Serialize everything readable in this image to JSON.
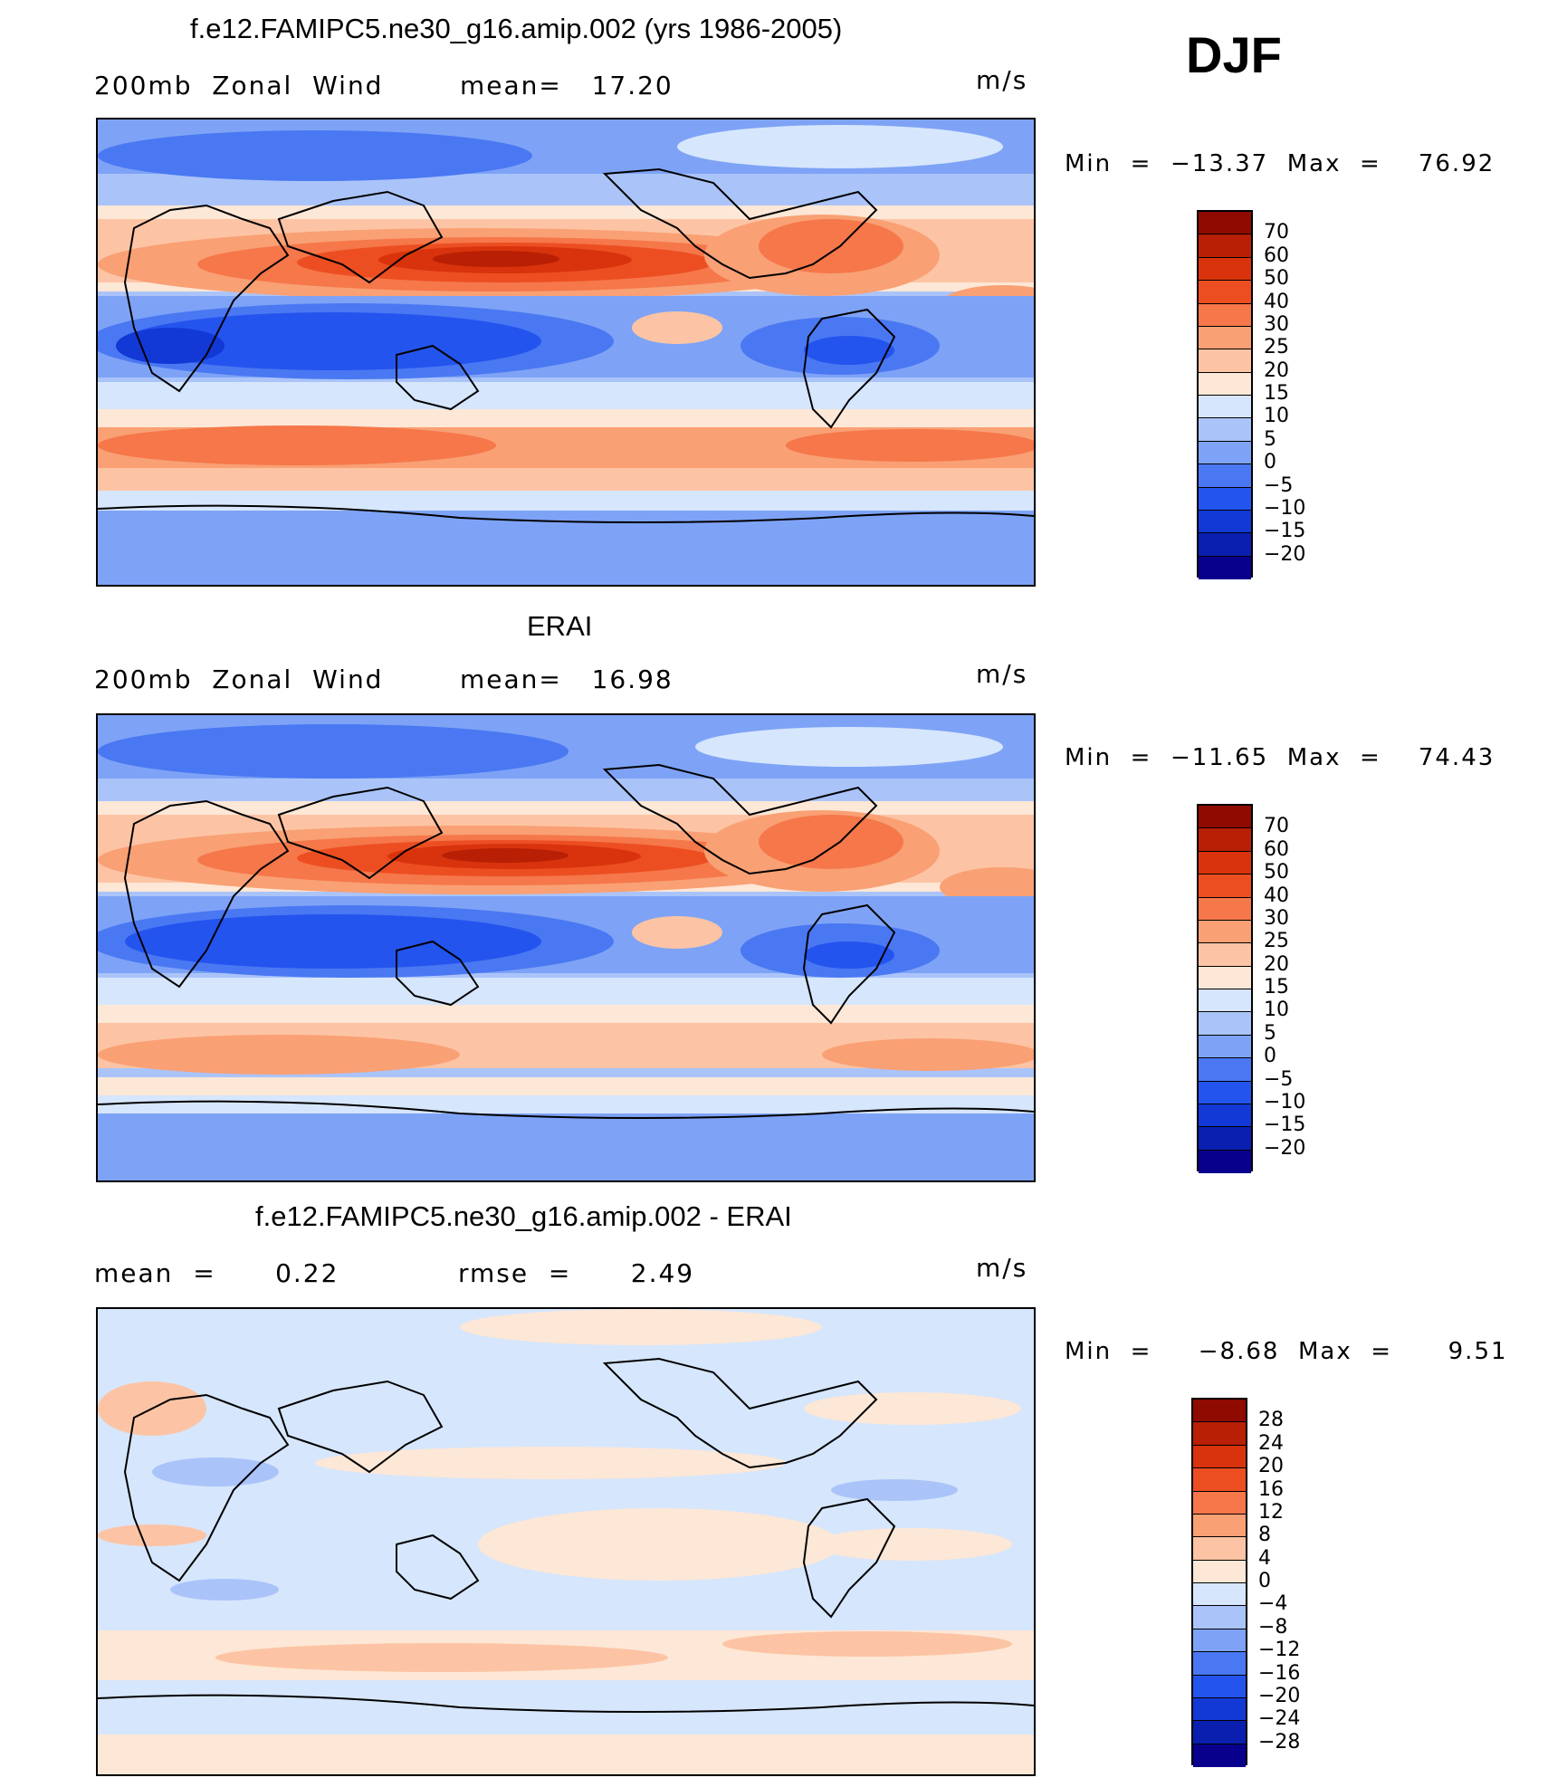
{
  "season": "DJF",
  "palette_wind": [
    "#08008c",
    "#0a1fb0",
    "#1238d6",
    "#2454ee",
    "#4a78f2",
    "#7ea3f6",
    "#aac4fa",
    "#d6e6fc",
    "#fde7d6",
    "#fcc4a4",
    "#f9a074",
    "#f5774a",
    "#ec4e22",
    "#d8330c",
    "#b81f04",
    "#8f0a00"
  ],
  "palette_diff": [
    "#08008c",
    "#0a1fb0",
    "#1238d6",
    "#2454ee",
    "#4a78f2",
    "#7ea3f6",
    "#aac4fa",
    "#d6e6fc",
    "#fde7d6",
    "#fcc4a4",
    "#f9a074",
    "#f5774a",
    "#ec4e22",
    "#d8330c",
    "#b81f04",
    "#8f0a00"
  ],
  "panels": [
    {
      "title": "f.e12.FAMIPC5.ne30_g16.amip.002 (yrs 1986-2005)",
      "left_label": "200mb  Zonal  Wind",
      "middle_label": "mean=   17.20",
      "units": "m/s",
      "min_label": "Min  =  −13.37  Max  =    76.92",
      "colorbar_labels": [
        "70",
        "60",
        "50",
        "40",
        "30",
        "25",
        "20",
        "15",
        "10",
        "5",
        "0",
        "−5",
        "−10",
        "−15",
        "−20"
      ],
      "map_type": "wind"
    },
    {
      "title": "ERAI",
      "left_label": "200mb  Zonal  Wind",
      "middle_label": "mean=   16.98",
      "units": "m/s",
      "min_label": "Min  =  −11.65  Max  =    74.43",
      "colorbar_labels": [
        "70",
        "60",
        "50",
        "40",
        "30",
        "25",
        "20",
        "15",
        "10",
        "5",
        "0",
        "−5",
        "−10",
        "−15",
        "−20"
      ],
      "map_type": "wind"
    },
    {
      "title": "f.e12.FAMIPC5.ne30_g16.amip.002 - ERAI",
      "left_label": "mean  =      0.22",
      "middle_label": "rmse  =      2.49",
      "units": "m/s",
      "min_label": "Min  =     −8.68  Max  =      9.51",
      "colorbar_labels": [
        "28",
        "24",
        "20",
        "16",
        "12",
        "8",
        "4",
        "0",
        "−4",
        "−8",
        "−12",
        "−16",
        "−20",
        "−24",
        "−28"
      ],
      "map_type": "diff"
    }
  ]
}
